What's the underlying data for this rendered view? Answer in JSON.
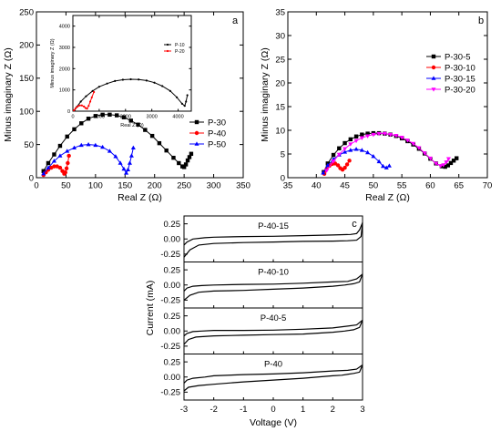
{
  "chart_data": [
    {
      "panel": "a",
      "type": "scatter",
      "xlabel": "Real Z (Ω)",
      "ylabel": "Minus imaginary Z (Ω)",
      "xlim": [
        0,
        350
      ],
      "ylim": [
        0,
        250
      ],
      "xticks": [
        0,
        50,
        100,
        150,
        200,
        250,
        300,
        350
      ],
      "yticks": [
        0,
        50,
        100,
        150,
        200,
        250
      ],
      "legend_position": "center-right",
      "series": [
        {
          "name": "P-30",
          "color": "#000000",
          "marker": "square",
          "x": [
            12,
            20,
            30,
            40,
            52,
            64,
            76,
            88,
            100,
            112,
            124,
            136,
            148,
            160,
            172,
            184,
            196,
            208,
            220,
            232,
            241,
            247,
            250,
            253,
            256,
            259,
            262
          ],
          "y": [
            10,
            22,
            35,
            48,
            62,
            73,
            82,
            89,
            93,
            95,
            95,
            94,
            91,
            86,
            80,
            72,
            63,
            52,
            41,
            30,
            22,
            17,
            16,
            20,
            26,
            31,
            36
          ]
        },
        {
          "name": "P-40",
          "color": "#ff0000",
          "marker": "circle",
          "x": [
            12,
            16,
            20,
            25,
            30,
            35,
            40,
            44,
            47,
            49,
            51,
            53,
            55
          ],
          "y": [
            4,
            8,
            12,
            15,
            17,
            17,
            15,
            10,
            6,
            8,
            14,
            22,
            33
          ]
        },
        {
          "name": "P-50",
          "color": "#0000ff",
          "marker": "triangle",
          "x": [
            12,
            20,
            30,
            40,
            52,
            64,
            76,
            88,
            100,
            112,
            124,
            134,
            142,
            148,
            152,
            155,
            158,
            161,
            164
          ],
          "y": [
            6,
            15,
            25,
            33,
            40,
            45,
            49,
            50,
            49,
            46,
            40,
            32,
            22,
            13,
            7,
            12,
            22,
            33,
            45
          ]
        }
      ]
    },
    {
      "panel": "a-inset",
      "type": "scatter",
      "xlabel": "Real Z (Ω)",
      "ylabel": "Minus imaginary Z (Ω)",
      "xlim": [
        0,
        4500
      ],
      "ylim": [
        0,
        4500
      ],
      "xticks": [
        0,
        1000,
        2000,
        3000,
        4000
      ],
      "yticks": [
        0,
        1000,
        2000,
        3000,
        4000
      ],
      "legend_position": "top-right",
      "series": [
        {
          "name": "P-10",
          "color": "#000000",
          "marker": "circle",
          "x": [
            60,
            150,
            300,
            500,
            750,
            1000,
            1300,
            1600,
            1900,
            2200,
            2500,
            2800,
            3100,
            3400,
            3700,
            3950,
            4150,
            4250,
            4300,
            4350
          ],
          "y": [
            40,
            200,
            450,
            700,
            950,
            1150,
            1300,
            1420,
            1480,
            1500,
            1490,
            1440,
            1340,
            1180,
            950,
            650,
            350,
            250,
            450,
            750
          ]
        },
        {
          "name": "P-20",
          "color": "#ff0000",
          "marker": "circle",
          "x": [
            40,
            100,
            180,
            260,
            340,
            420,
            480,
            540,
            600,
            660,
            720,
            800
          ],
          "y": [
            40,
            130,
            220,
            270,
            270,
            220,
            150,
            120,
            250,
            450,
            650,
            900
          ]
        }
      ]
    },
    {
      "panel": "b",
      "type": "scatter",
      "xlabel": "Real Z (Ω)",
      "ylabel": "Minus imaginary Z (Ω)",
      "xlim": [
        35,
        70
      ],
      "ylim": [
        0,
        35
      ],
      "xticks": [
        35,
        40,
        45,
        50,
        55,
        60,
        65,
        70
      ],
      "yticks": [
        0,
        5,
        10,
        15,
        20,
        25,
        30,
        35
      ],
      "legend_position": "right",
      "series": [
        {
          "name": "P-30-5",
          "color": "#000000",
          "marker": "square",
          "x": [
            41.3,
            42,
            43,
            44,
            45,
            46,
            47,
            48,
            49,
            50,
            51,
            52,
            53,
            54,
            55,
            56,
            57,
            58,
            59,
            60,
            61,
            62,
            62.6,
            63.1,
            63.6,
            64.1,
            64.6
          ],
          "y": [
            1.2,
            3,
            4.8,
            6.2,
            7.3,
            8.1,
            8.7,
            9.1,
            9.3,
            9.4,
            9.4,
            9.3,
            9.1,
            8.8,
            8.3,
            7.7,
            7,
            6.1,
            5.1,
            4,
            3,
            2.4,
            2.3,
            2.6,
            3.1,
            3.6,
            4.1
          ]
        },
        {
          "name": "P-30-10",
          "color": "#ff0000",
          "marker": "circle",
          "x": [
            41.4,
            41.8,
            42.3,
            42.8,
            43.3,
            43.8,
            44.2,
            44.6,
            45,
            45.4,
            45.8
          ],
          "y": [
            0.8,
            1.8,
            2.5,
            2.9,
            3,
            2.6,
            2,
            1.7,
            2.1,
            2.8,
            3.6
          ]
        },
        {
          "name": "P-30-15",
          "color": "#0000ff",
          "marker": "triangle",
          "x": [
            41.2,
            42,
            43,
            44,
            45,
            46,
            47,
            48,
            49,
            50,
            51,
            51.7,
            52.3,
            52.8
          ],
          "y": [
            1,
            2.6,
            3.9,
            4.8,
            5.4,
            5.8,
            6,
            5.8,
            5.3,
            4.5,
            3.4,
            2.4,
            2.1,
            2.5
          ]
        },
        {
          "name": "P-30-20",
          "color": "#ff00ff",
          "marker": "triangle-down",
          "x": [
            41.8,
            43,
            44,
            45,
            46,
            47,
            48,
            49,
            50,
            51,
            52,
            53,
            54,
            55,
            56,
            57,
            58,
            59,
            60,
            61,
            61.8,
            62.3,
            62.8,
            63.2
          ],
          "y": [
            1.5,
            3.5,
            4.9,
            6.1,
            7.1,
            7.8,
            8.4,
            8.8,
            9.1,
            9.3,
            9.3,
            9.1,
            8.9,
            8.5,
            7.9,
            7.2,
            6.3,
            5.2,
            4.1,
            3,
            2.5,
            2.7,
            3.3,
            4
          ]
        }
      ]
    },
    {
      "panel": "c",
      "type": "line",
      "xlabel": "Voltage (V)",
      "ylabel": "Current (mA)",
      "xlim": [
        -3,
        3
      ],
      "ylim": [
        -0.38,
        0.38
      ],
      "xticks": [
        -3,
        -2,
        -1,
        0,
        1,
        2,
        3
      ],
      "yticks": [
        -0.25,
        0,
        0.25
      ],
      "ytick_labels": [
        "-0.25",
        "0.00",
        "0.25"
      ],
      "subplots": [
        {
          "label": "P-40-15",
          "upper": {
            "x": [
              -3,
              -2.9,
              -2.7,
              -2.3,
              -2,
              -1,
              0,
              1,
              2,
              2.6,
              2.8,
              2.9,
              3
            ],
            "y": [
              -0.1,
              -0.05,
              0,
              0.02,
              0.03,
              0.04,
              0.045,
              0.055,
              0.065,
              0.075,
              0.09,
              0.15,
              0.27
            ]
          },
          "lower": {
            "x": [
              3,
              2.95,
              2.8,
              2.5,
              2,
              1,
              0,
              -1,
              -2,
              -2.5,
              -2.8,
              -3
            ],
            "y": [
              0.27,
              0.04,
              -0.02,
              -0.03,
              -0.035,
              -0.04,
              -0.05,
              -0.06,
              -0.075,
              -0.1,
              -0.18,
              -0.3
            ]
          }
        },
        {
          "label": "P-40-10",
          "upper": {
            "x": [
              -3,
              -2.9,
              -2.7,
              -2.4,
              -2,
              -1,
              0,
              1,
              2,
              2.5,
              2.8,
              3
            ],
            "y": [
              -0.1,
              -0.05,
              -0.02,
              -0.01,
              0,
              0.01,
              0.015,
              0.03,
              0.05,
              0.06,
              0.1,
              0.18
            ]
          },
          "lower": {
            "x": [
              3,
              2.9,
              2.7,
              2.4,
              2,
              1,
              0,
              -1,
              -2,
              -2.5,
              -2.8,
              -3
            ],
            "y": [
              0.18,
              0.05,
              0.02,
              0,
              -0.02,
              -0.05,
              -0.07,
              -0.09,
              -0.1,
              -0.12,
              -0.17,
              -0.25
            ]
          }
        },
        {
          "label": "P-40-5",
          "upper": {
            "x": [
              -3,
              -2.9,
              -2.7,
              -2.4,
              -2,
              -1,
              0,
              1,
              2,
              2.5,
              2.8,
              3
            ],
            "y": [
              -0.08,
              -0.04,
              -0.01,
              0,
              0.01,
              0.01,
              0.015,
              0.03,
              0.05,
              0.08,
              0.1,
              0.18
            ]
          },
          "lower": {
            "x": [
              3,
              2.9,
              2.7,
              2.4,
              2,
              1,
              0,
              -1,
              -2,
              -2.6,
              -2.85,
              -3
            ],
            "y": [
              0.18,
              0.06,
              0.02,
              0,
              -0.02,
              -0.05,
              -0.06,
              -0.07,
              -0.08,
              -0.1,
              -0.14,
              -0.22
            ]
          }
        },
        {
          "label": "P-40",
          "upper": {
            "x": [
              -3,
              -2.9,
              -2.7,
              -2.3,
              -2,
              -1,
              0,
              1,
              2,
              2.5,
              2.8,
              3
            ],
            "y": [
              -0.1,
              -0.05,
              -0.02,
              0,
              0.02,
              0.04,
              0.05,
              0.07,
              0.1,
              0.11,
              0.13,
              0.2
            ]
          },
          "lower": {
            "x": [
              3,
              2.9,
              2.7,
              2.3,
              2,
              1,
              0,
              -1,
              -2,
              -2.5,
              -2.85,
              -3
            ],
            "y": [
              0.2,
              0.08,
              0.06,
              0.03,
              0.02,
              -0.02,
              -0.05,
              -0.08,
              -0.12,
              -0.14,
              -0.17,
              -0.23
            ]
          }
        }
      ]
    }
  ]
}
